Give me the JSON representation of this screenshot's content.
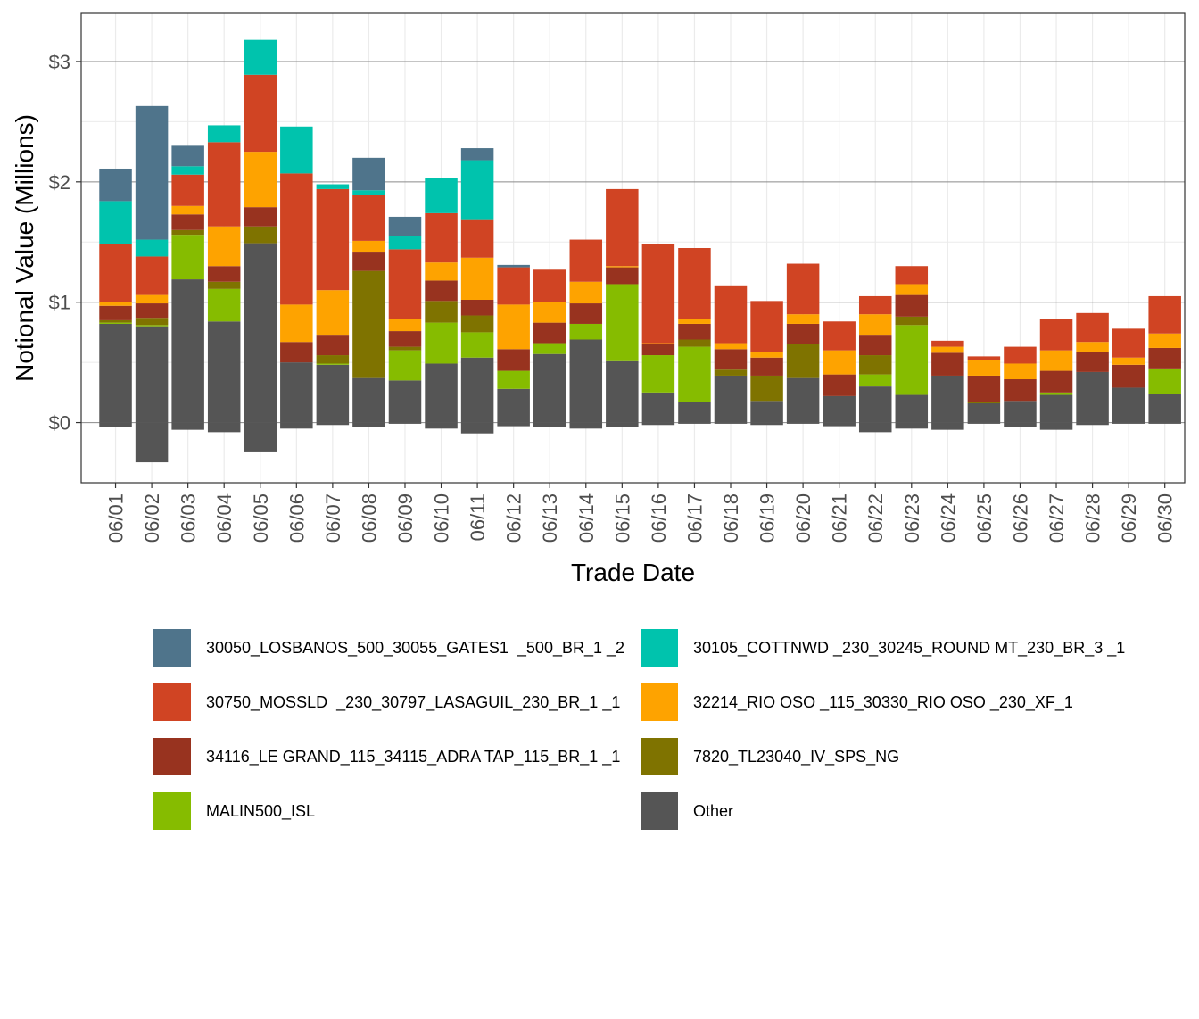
{
  "chart_data": {
    "type": "bar",
    "stacked": true,
    "xlabel": "Trade Date",
    "ylabel": "Notional Value (Millions)",
    "ylim": [
      -0.5,
      3.4
    ],
    "ytick_values": [
      0,
      1,
      2,
      3
    ],
    "ytick_labels": [
      "$0",
      "$1",
      "$2",
      "$3"
    ],
    "grid": true,
    "legend_position": "bottom",
    "categories": [
      "06/01",
      "06/02",
      "06/03",
      "06/04",
      "06/05",
      "06/06",
      "06/07",
      "06/08",
      "06/09",
      "06/10",
      "06/11",
      "06/12",
      "06/13",
      "06/14",
      "06/15",
      "06/16",
      "06/17",
      "06/18",
      "06/19",
      "06/20",
      "06/21",
      "06/22",
      "06/23",
      "06/24",
      "06/25",
      "06/26",
      "06/27",
      "06/28",
      "06/29",
      "06/30"
    ],
    "series": [
      {
        "name": "Other",
        "color": "#555555",
        "values": [
          0.82,
          0.8,
          1.19,
          0.84,
          1.49,
          0.5,
          0.48,
          0.37,
          0.35,
          0.49,
          0.54,
          0.28,
          0.57,
          0.69,
          0.51,
          0.25,
          0.17,
          0.39,
          0.18,
          0.37,
          0.22,
          0.3,
          0.23,
          0.39,
          0.16,
          0.18,
          0.23,
          0.42,
          0.29,
          0.24
        ],
        "negative": [
          -0.04,
          -0.33,
          -0.06,
          -0.08,
          -0.24,
          -0.05,
          -0.02,
          -0.04,
          -0.01,
          -0.05,
          -0.09,
          -0.03,
          -0.04,
          -0.05,
          -0.04,
          -0.02,
          -0.01,
          -0.01,
          -0.02,
          -0.01,
          -0.03,
          -0.08,
          -0.05,
          -0.06,
          -0.01,
          -0.04,
          -0.06,
          -0.02,
          -0.01,
          -0.01
        ]
      },
      {
        "name": "MALIN500_ISL",
        "color": "#86BC00",
        "values": [
          0.01,
          0.01,
          0.37,
          0.27,
          0,
          0,
          0.01,
          0,
          0.25,
          0.34,
          0.21,
          0.15,
          0.09,
          0.13,
          0.64,
          0.31,
          0.46,
          0,
          0,
          0,
          0,
          0.1,
          0.58,
          0,
          0,
          0,
          0.02,
          0,
          0,
          0.21
        ]
      },
      {
        "name": "7820_TL23040_IV_SPS_NG",
        "color": "#7F7300",
        "values": [
          0.02,
          0.06,
          0.04,
          0.06,
          0.14,
          0,
          0.07,
          0.89,
          0.03,
          0.18,
          0.14,
          0,
          0,
          0,
          0,
          0,
          0.06,
          0.05,
          0.21,
          0.28,
          0,
          0.16,
          0.07,
          0,
          0.01,
          0,
          0,
          0,
          0,
          0
        ]
      },
      {
        "name": "34116_LE GRAND_115_34115_ADRA TAP_115_BR_1 _1",
        "color": "#98331F",
        "values": [
          0.12,
          0.12,
          0.13,
          0.13,
          0.16,
          0.17,
          0.17,
          0.16,
          0.13,
          0.17,
          0.13,
          0.18,
          0.17,
          0.17,
          0.14,
          0.09,
          0.13,
          0.17,
          0.15,
          0.17,
          0.18,
          0.17,
          0.18,
          0.19,
          0.22,
          0.18,
          0.18,
          0.17,
          0.19,
          0.17
        ]
      },
      {
        "name": "32214_RIO OSO _115_30330_RIO OSO _230_XF_1",
        "color": "#FEA300",
        "values": [
          0.03,
          0.07,
          0.07,
          0.33,
          0.46,
          0.31,
          0.37,
          0.09,
          0.1,
          0.15,
          0.35,
          0.37,
          0.17,
          0.18,
          0.01,
          0.01,
          0.04,
          0.05,
          0.05,
          0.08,
          0.2,
          0.17,
          0.09,
          0.05,
          0.13,
          0.13,
          0.17,
          0.08,
          0.06,
          0.12
        ]
      },
      {
        "name": "30750_MOSSLD  _230_30797_LASAGUIL_230_BR_1 _1",
        "color": "#D04423",
        "values": [
          0.48,
          0.32,
          0.26,
          0.7,
          0.64,
          1.09,
          0.84,
          0.38,
          0.58,
          0.41,
          0.32,
          0.31,
          0.27,
          0.35,
          0.64,
          0.82,
          0.59,
          0.48,
          0.42,
          0.42,
          0.24,
          0.15,
          0.15,
          0.05,
          0.03,
          0.14,
          0.26,
          0.24,
          0.24,
          0.31
        ]
      },
      {
        "name": "30105_COTTNWD _230_30245_ROUND MT_230_BR_3 _1",
        "color": "#00C3AD",
        "values": [
          0.36,
          0.14,
          0.07,
          0.14,
          0.29,
          0.39,
          0.04,
          0.04,
          0.11,
          0.29,
          0.49,
          0,
          0,
          0,
          0,
          0,
          0,
          0,
          0,
          0,
          0,
          0,
          0,
          0,
          0,
          0,
          0,
          0,
          0,
          0
        ]
      },
      {
        "name": "30050_LOSBANOS_500_30055_GATES1  _500_BR_1 _2",
        "color": "#4F748B",
        "values": [
          0.27,
          1.11,
          0.17,
          0,
          0,
          0,
          0,
          0.27,
          0.16,
          0,
          0.1,
          0.02,
          0,
          0,
          0,
          0,
          0,
          0,
          0,
          0,
          0,
          0,
          0,
          0,
          0,
          0,
          0,
          0,
          0,
          0
        ]
      }
    ]
  },
  "legend": {
    "items": [
      {
        "label": "30050_LOSBANOS_500_30055_GATES1  _500_BR_1 _2",
        "color": "#4F748B"
      },
      {
        "label": "30105_COTTNWD _230_30245_ROUND MT_230_BR_3 _1",
        "color": "#00C3AD"
      },
      {
        "label": "30750_MOSSLD  _230_30797_LASAGUIL_230_BR_1 _1",
        "color": "#D04423"
      },
      {
        "label": "32214_RIO OSO _115_30330_RIO OSO _230_XF_1",
        "color": "#FEA300"
      },
      {
        "label": "34116_LE GRAND_115_34115_ADRA TAP_115_BR_1 _1",
        "color": "#98331F"
      },
      {
        "label": "7820_TL23040_IV_SPS_NG",
        "color": "#7F7300"
      },
      {
        "label": "MALIN500_ISL",
        "color": "#86BC00"
      },
      {
        "label": "Other",
        "color": "#555555"
      }
    ]
  }
}
